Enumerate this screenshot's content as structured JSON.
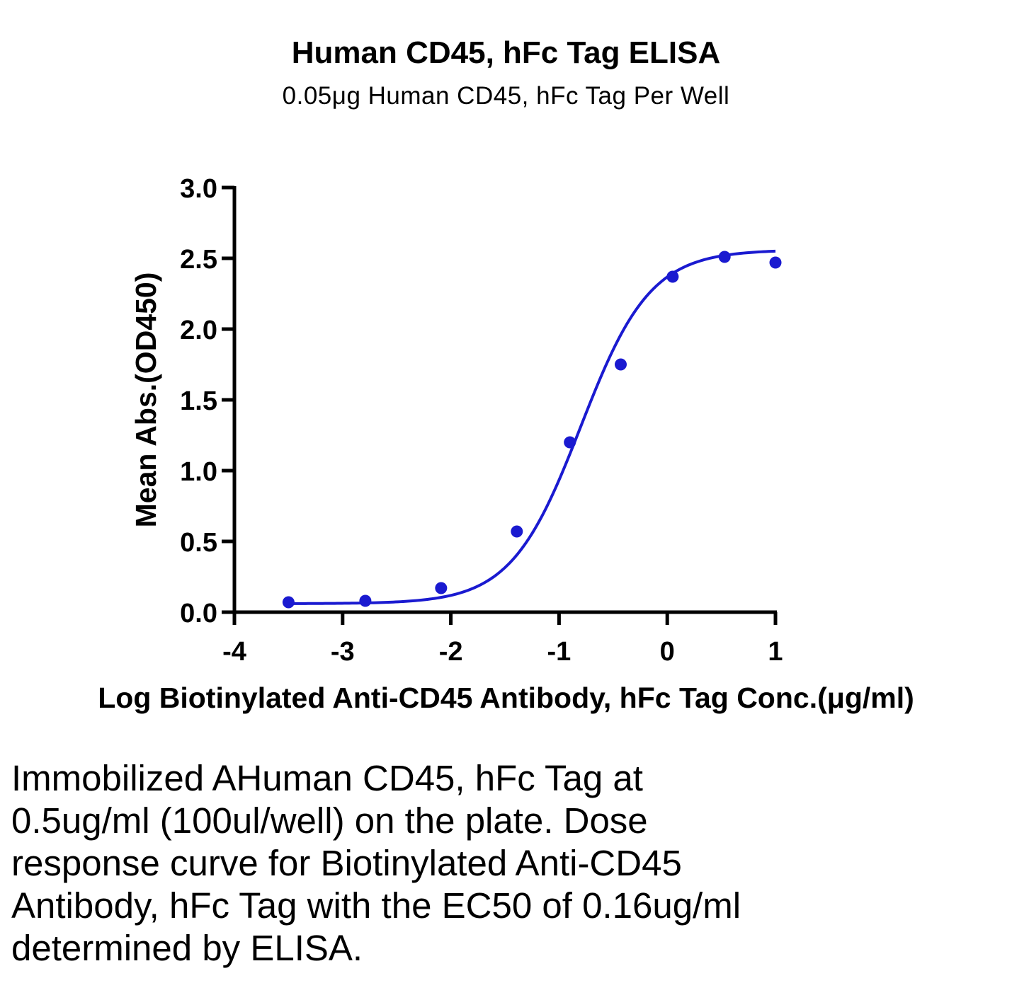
{
  "chart_data": {
    "type": "scatter",
    "title": "Human CD45, hFc Tag ELISA",
    "subtitle": "0.05μg Human CD45, hFc Tag Per Well",
    "xlabel": "Log Biotinylated Anti-CD45 Antibody, hFc Tag Conc.(μg/ml)",
    "ylabel": "Mean Abs.(OD450)",
    "xlim": [
      -4,
      1
    ],
    "ylim": [
      0,
      3
    ],
    "x_ticks": [
      -4,
      -3,
      -2,
      -1,
      0,
      1
    ],
    "x_tick_labels": [
      "-4",
      "-3",
      "-2",
      "-1",
      "0",
      "1"
    ],
    "y_ticks": [
      0,
      0.5,
      1,
      1.5,
      2,
      2.5,
      3
    ],
    "y_tick_labels": [
      "0.0",
      "0.5",
      "1.0",
      "1.5",
      "2.0",
      "2.5",
      "3.0"
    ],
    "grid": false,
    "series": [
      {
        "color": "#1a1ad0",
        "points": [
          {
            "x": -3.5,
            "y": 0.07
          },
          {
            "x": -2.79,
            "y": 0.08
          },
          {
            "x": -2.09,
            "y": 0.17
          },
          {
            "x": -1.39,
            "y": 0.57
          },
          {
            "x": -0.9,
            "y": 1.2
          },
          {
            "x": -0.43,
            "y": 1.75
          },
          {
            "x": 0.05,
            "y": 2.37
          },
          {
            "x": 0.53,
            "y": 2.51
          },
          {
            "x": 1.0,
            "y": 2.47
          }
        ],
        "fit": {
          "model": "4PL",
          "bottom": 0.06,
          "top": 2.56,
          "log_ec50": -0.8,
          "hill_slope": 1.35,
          "x_range": [
            -3.5,
            1.0
          ]
        }
      }
    ]
  },
  "caption": "Immobilized AHuman CD45, hFc Tag at 0.5ug/ml (100ul/well) on the plate. Dose response curve for Biotinylated Anti-CD45 Antibody, hFc Tag with the EC50 of 0.16ug/ml determined by ELISA."
}
